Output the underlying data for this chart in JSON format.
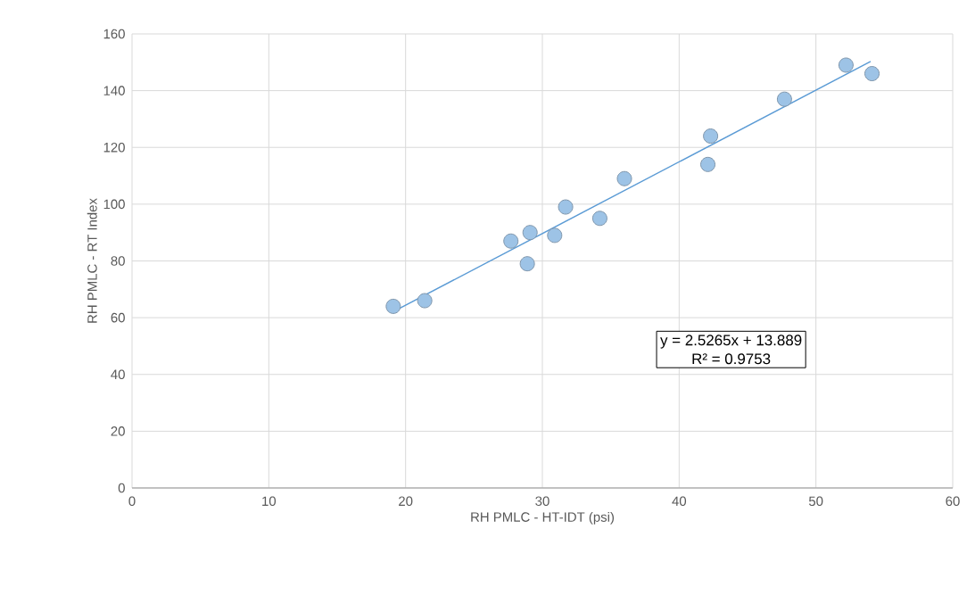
{
  "chart_data": {
    "type": "scatter",
    "xlabel": "RH PMLC - HT-IDT (psi)",
    "ylabel": "RH PMLC - RT Index",
    "series": [
      {
        "color": "#9dc3e6",
        "x": [
          19.1,
          21.4,
          27.7,
          29.1,
          28.9,
          30.9,
          31.7,
          34.2,
          36.0,
          42.1,
          42.3,
          47.7,
          52.2,
          54.1
        ],
        "values": [
          64,
          66,
          87,
          90,
          79,
          89,
          99,
          95,
          109,
          114,
          124,
          137,
          149,
          146
        ]
      },
      {
        "type": "line",
        "marker": "none",
        "color": "#5b9bd5",
        "x": [
          19.1,
          54.0
        ],
        "values": [
          62.1,
          150.3
        ]
      }
    ],
    "annotations": [
      "y = 2.5265x + 13.889",
      "R² = 0.9753"
    ],
    "xlim": [
      0,
      60
    ],
    "ylim": [
      0,
      160
    ],
    "xticks": [
      0,
      10,
      20,
      30,
      40,
      50,
      60
    ],
    "yticks": [
      0,
      20,
      40,
      60,
      80,
      100,
      120,
      140,
      160
    ],
    "grid": true,
    "marker": "circle"
  }
}
